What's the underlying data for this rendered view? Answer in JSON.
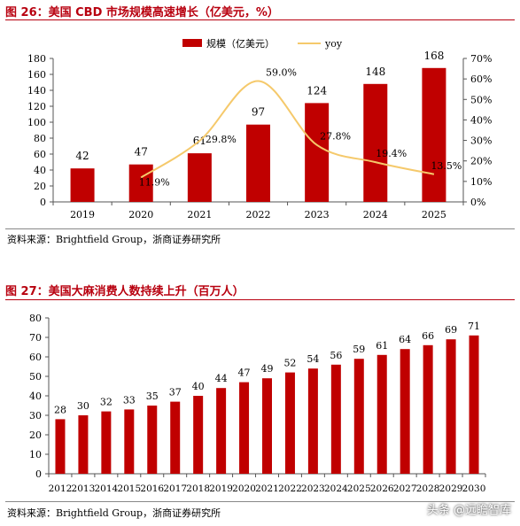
{
  "figure1": {
    "title": "图 26：美国 CBD 市场规模高速增长（亿美元，%）",
    "source": "资料来源：Brightfield Group，浙商证券研究所"
  },
  "figure2": {
    "title": "图 27：美国大麻消费人数持续上升（百万人）",
    "source": "资料来源：Brightfield Group，浙商证券研究所"
  },
  "watermark": "头条 @远瞻智库",
  "colors": {
    "bar": "#c00000",
    "line": "#f5c96b",
    "title": "#b8000f"
  },
  "chart_data": [
    {
      "type": "bar",
      "title": "图 26：美国 CBD 市场规模高速增长（亿美元，%）",
      "categories": [
        "2019",
        "2020",
        "2021",
        "2022",
        "2023",
        "2024",
        "2025"
      ],
      "series": [
        {
          "name": "规模（亿美元）",
          "type": "bar",
          "axis": "left",
          "values": [
            42,
            47,
            61,
            97,
            124,
            148,
            168
          ],
          "labels": [
            "42",
            "47",
            "61",
            "97",
            "124",
            "148",
            "168"
          ]
        },
        {
          "name": "yoy",
          "type": "line",
          "axis": "right",
          "values": [
            null,
            11.9,
            29.8,
            59.0,
            27.8,
            19.4,
            13.5
          ],
          "labels": [
            "",
            "11.9%",
            "29.8%",
            "59.0%",
            "27.8%",
            "19.4%",
            "13.5%"
          ]
        }
      ],
      "ylim": [
        0,
        180
      ],
      "yticks": [
        "0",
        "20",
        "40",
        "60",
        "80",
        "100",
        "120",
        "140",
        "160",
        "180"
      ],
      "y2lim": [
        0,
        70
      ],
      "y2ticks": [
        "0%",
        "10%",
        "20%",
        "30%",
        "40%",
        "50%",
        "60%",
        "70%"
      ],
      "legend": "top-center",
      "grid": false
    },
    {
      "type": "bar",
      "title": "图 27：美国大麻消费人数持续上升（百万人）",
      "categories": [
        "2012",
        "2013",
        "2014",
        "2015",
        "2016",
        "2017",
        "2018",
        "2019",
        "2020",
        "2021",
        "2022",
        "2023",
        "2024",
        "2025",
        "2026",
        "2027",
        "2028",
        "2029",
        "2030"
      ],
      "values": [
        28,
        30,
        32,
        33,
        35,
        37,
        40,
        44,
        47,
        49,
        52,
        54,
        56,
        59,
        61,
        64,
        66,
        69,
        71
      ],
      "ylim": [
        0,
        80
      ],
      "yticks": [
        "0",
        "10",
        "20",
        "30",
        "40",
        "50",
        "60",
        "70",
        "80"
      ],
      "legend": "none",
      "grid": false
    }
  ]
}
